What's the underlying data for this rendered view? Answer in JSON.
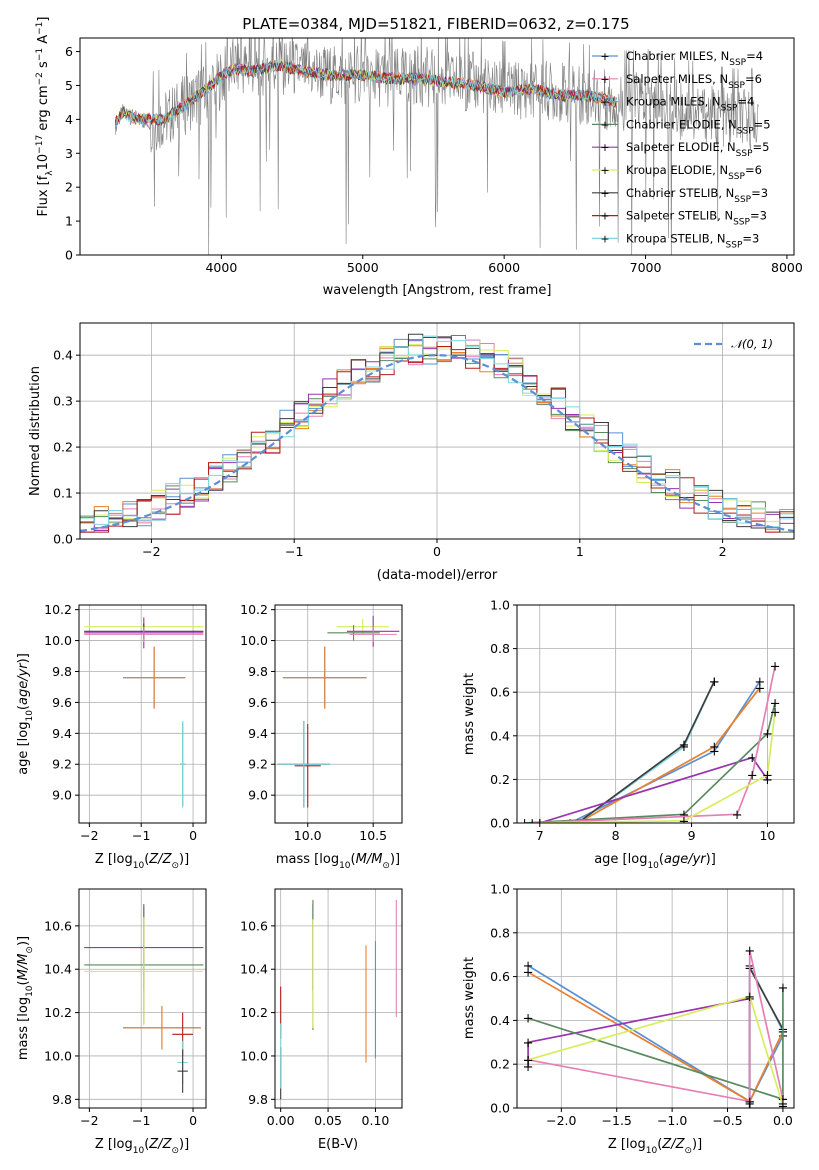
{
  "title": "PLATE=0384, MJD=51821, FIBERID=0632, z=0.175",
  "colors": {
    "data": "#808080",
    "chabrier_miles": "#5b8fd6",
    "salpeter_miles": "#e67fb5",
    "kroupa_miles": "#e8802f",
    "chabrier_elodie": "#5a8a5f",
    "salpeter_elodie": "#9a33b0",
    "kroupa_elodie": "#d6ee5e",
    "chabrier_stelib": "#3d3d3d",
    "salpeter_stelib": "#b51b1b",
    "kroupa_stelib": "#7fd6e0",
    "gaussian": "#5b8fd6",
    "grid": "#b0b0b0"
  },
  "spectrum_panel": {
    "xlabel": "wavelength [Angstrom, rest frame]",
    "ylabel_parts": [
      "Flux [f",
      "λ",
      "10",
      "−17",
      " erg cm",
      "−2",
      " s",
      "−1",
      " A",
      "−1",
      "]"
    ],
    "xticks": [
      "4000",
      "5000",
      "6000",
      "7000",
      "8000"
    ],
    "yticks": [
      "0",
      "1",
      "2",
      "3",
      "4",
      "5",
      "6"
    ],
    "legend": [
      {
        "label": "Chabrier MILES, N",
        "sub": "SSP",
        "n": "=4",
        "color_key": "chabrier_miles"
      },
      {
        "label": "Salpeter MILES, N",
        "sub": "SSP",
        "n": "=6",
        "color_key": "salpeter_miles"
      },
      {
        "label": "Kroupa MILES, N",
        "sub": "SSP",
        "n": "=4",
        "color_key": "kroupa_miles"
      },
      {
        "label": "Chabrier ELODIE, N",
        "sub": "SSP",
        "n": "=5",
        "color_key": "chabrier_elodie"
      },
      {
        "label": "Salpeter ELODIE, N",
        "sub": "SSP",
        "n": "=5",
        "color_key": "salpeter_elodie"
      },
      {
        "label": "Kroupa ELODIE, N",
        "sub": "SSP",
        "n": "=6",
        "color_key": "kroupa_elodie"
      },
      {
        "label": "Chabrier STELIB, N",
        "sub": "SSP",
        "n": "=3",
        "color_key": "chabrier_stelib"
      },
      {
        "label": "Salpeter STELIB, N",
        "sub": "SSP",
        "n": "=3",
        "color_key": "salpeter_stelib"
      },
      {
        "label": "Kroupa STELIB, N",
        "sub": "SSP",
        "n": "=3",
        "color_key": "kroupa_stelib"
      }
    ]
  },
  "residual_panel": {
    "xlabel": "(data-model)/error",
    "ylabel": "Normed distribution",
    "xticks": [
      "−2",
      "−1",
      "0",
      "1",
      "2"
    ],
    "yticks": [
      "0.0",
      "0.1",
      "0.2",
      "0.3",
      "0.4"
    ],
    "legend_label": "𝒩(0, 1)"
  },
  "small_panels": {
    "age_z": {
      "xlabel": "Z [log10(Z/Z⊙)]",
      "ylabel": "age  [log10(age/yr)]",
      "xticks": [
        "−2",
        "−1",
        "0"
      ],
      "yticks": [
        "9.0",
        "9.2",
        "9.4",
        "9.6",
        "9.8",
        "10.0",
        "10.2"
      ]
    },
    "age_mass": {
      "xlabel": "mass [log10(M/M⊙)]",
      "xticks": [
        "10.0",
        "10.5"
      ],
      "yticks": [
        "9.0",
        "9.2",
        "9.4",
        "9.6",
        "9.8",
        "10.0",
        "10.2"
      ]
    },
    "weight_age": {
      "xlabel": "age  [log10(age/yr)]",
      "ylabel": "mass weight",
      "xticks": [
        "7",
        "8",
        "9",
        "10"
      ],
      "yticks": [
        "0.0",
        "0.2",
        "0.4",
        "0.6",
        "0.8",
        "1.0"
      ]
    },
    "mass_z": {
      "xlabel": "Z [log10(Z/Z⊙)]",
      "ylabel": "mass [log10(M/M⊙)]",
      "xticks": [
        "−2",
        "−1",
        "0"
      ],
      "yticks": [
        "9.8",
        "10.0",
        "10.2",
        "10.4",
        "10.6"
      ]
    },
    "mass_ebv": {
      "xlabel": "E(B-V)",
      "xticks": [
        "0.00",
        "0.05",
        "0.10"
      ],
      "yticks": [
        "9.8",
        "10.0",
        "10.2",
        "10.4",
        "10.6"
      ]
    },
    "weight_z": {
      "xlabel": "Z [log10(Z/Z⊙)]",
      "ylabel": "mass weight",
      "xticks": [
        "−2.0",
        "−1.5",
        "−1.0",
        "−0.5",
        "0.0"
      ],
      "yticks": [
        "0.0",
        "0.2",
        "0.4",
        "0.6",
        "0.8",
        "1.0"
      ]
    }
  },
  "chart_data": [
    {
      "type": "line",
      "title": "PLATE=0384, MJD=51821, FIBERID=0632, z=0.175",
      "xlabel": "wavelength [Angstrom, rest frame]",
      "ylabel": "Flux [fλ10−17 erg cm−2 s−1 A−1]",
      "xlim": [
        3000,
        8050
      ],
      "ylim": [
        0,
        6.4
      ],
      "grid": false,
      "legend": "top-right",
      "series": [
        {
          "name": "data",
          "color_key": "data",
          "x": [
            3250,
            3300,
            3400,
            3500,
            3600,
            3700,
            3800,
            3900,
            4000,
            4100,
            4200,
            4400,
            4600,
            4800,
            5000,
            5200,
            5400,
            5600,
            5800,
            6000,
            6200,
            6400,
            6600,
            6800,
            7000,
            7200,
            7400,
            7600,
            7800
          ],
          "y": [
            3.8,
            4.2,
            4.0,
            3.9,
            4.0,
            4.3,
            4.6,
            4.8,
            5.2,
            5.6,
            5.5,
            5.6,
            5.4,
            5.3,
            5.3,
            5.2,
            5.3,
            5.1,
            5.1,
            4.8,
            4.9,
            4.8,
            4.7,
            4.5,
            4.6,
            4.3,
            4.2,
            4.0,
            4.0
          ]
        },
        {
          "name": "model (all SSP fits)",
          "color_key": "kroupa_stelib",
          "x": [
            3250,
            3300,
            3400,
            3500,
            3600,
            3700,
            3800,
            3900,
            4000,
            4100,
            4200,
            4400,
            4600,
            4800,
            5000,
            5200,
            5400,
            5600,
            5800,
            6000,
            6200,
            6400,
            6600,
            6800
          ],
          "y": [
            3.9,
            4.2,
            4.0,
            4.0,
            4.0,
            4.3,
            4.6,
            4.9,
            5.3,
            5.5,
            5.4,
            5.6,
            5.4,
            5.3,
            5.3,
            5.2,
            5.2,
            5.1,
            5.0,
            4.8,
            4.9,
            4.7,
            4.7,
            4.5
          ]
        }
      ]
    },
    {
      "type": "bar",
      "title": "",
      "xlabel": "(data-model)/error",
      "ylabel": "Normed distribution",
      "xlim": [
        -2.5,
        2.5
      ],
      "ylim": [
        0,
        0.47
      ],
      "grid": true,
      "legend": "top-right",
      "bins": [
        -2.5,
        -2.3,
        -2.1,
        -1.9,
        -1.7,
        -1.5,
        -1.3,
        -1.1,
        -0.9,
        -0.7,
        -0.5,
        -0.3,
        -0.1,
        0.1,
        0.3,
        0.5,
        0.7,
        0.9,
        1.1,
        1.3,
        1.5,
        1.7,
        1.9,
        2.1,
        2.3,
        2.5
      ],
      "histogram_values": [
        0.04,
        0.05,
        0.07,
        0.09,
        0.12,
        0.16,
        0.2,
        0.23,
        0.27,
        0.31,
        0.34,
        0.36,
        0.38,
        0.36,
        0.33,
        0.3,
        0.28,
        0.24,
        0.21,
        0.16,
        0.12,
        0.09,
        0.07,
        0.05,
        0.04
      ],
      "gaussian": {
        "name": "𝒩(0, 1)",
        "mean": 0,
        "sigma": 1,
        "peak": 0.4
      }
    },
    {
      "type": "scatter",
      "xlabel": "Z [log10(Z/Z⊙)]",
      "ylabel": "age  [log10(age/yr)]",
      "xlim": [
        -2.2,
        0.25
      ],
      "ylim": [
        8.82,
        10.23
      ],
      "points": [
        {
          "color_key": "kroupa_elodie",
          "x": -0.95,
          "xerr": 1.15,
          "y": 10.09,
          "yerr": 0.05
        },
        {
          "color_key": "salpeter_elodie",
          "x": -0.95,
          "xerr": 1.15,
          "y": 10.05,
          "yerr": 0.1
        },
        {
          "color_key": "chabrier_stelib",
          "x": -0.95,
          "xerr": 1.15,
          "y": 10.06,
          "yerr": 0.05
        },
        {
          "color_key": "salpeter_miles",
          "x": -0.95,
          "xerr": 1.15,
          "y": 10.04,
          "yerr": 0.05
        },
        {
          "color_key": "chabrier_miles",
          "x": -0.75,
          "xerr": 0.6,
          "y": 9.76,
          "yerr": 0.2
        },
        {
          "color_key": "kroupa_miles",
          "x": -0.75,
          "xerr": 0.6,
          "y": 9.76,
          "yerr": 0.2
        },
        {
          "color_key": "chabrier_elodie",
          "x": -0.2,
          "xerr": 0.05,
          "y": 9.2,
          "yerr": 0.27
        },
        {
          "color_key": "kroupa_stelib",
          "x": -0.2,
          "xerr": 0.05,
          "y": 9.2,
          "yerr": 0.28
        }
      ]
    },
    {
      "type": "scatter",
      "xlabel": "mass [log10(M/M⊙)]",
      "ylabel": "",
      "xlim": [
        9.75,
        10.72
      ],
      "ylim": [
        8.82,
        10.23
      ],
      "points": [
        {
          "color_key": "kroupa_elodie",
          "x": 10.42,
          "xerr": 0.2,
          "y": 10.09,
          "yerr": 0.05
        },
        {
          "color_key": "salpeter_elodie",
          "x": 10.5,
          "xerr": 0.2,
          "y": 10.06,
          "yerr": 0.1
        },
        {
          "color_key": "chabrier_elodie",
          "x": 10.35,
          "xerr": 0.2,
          "y": 10.05,
          "yerr": 0.05
        },
        {
          "color_key": "salpeter_miles",
          "x": 10.5,
          "xerr": 0.18,
          "y": 10.04,
          "yerr": 0.05
        },
        {
          "color_key": "chabrier_miles",
          "x": 10.13,
          "xerr": 0.32,
          "y": 9.76,
          "yerr": 0.2
        },
        {
          "color_key": "kroupa_miles",
          "x": 10.13,
          "xerr": 0.32,
          "y": 9.76,
          "yerr": 0.2
        },
        {
          "color_key": "salpeter_stelib",
          "x": 10.0,
          "xerr": 0.1,
          "y": 9.19,
          "yerr": 0.27
        },
        {
          "color_key": "chabrier_stelib",
          "x": 9.97,
          "xerr": 0.2,
          "y": 9.2,
          "yerr": 0.28
        },
        {
          "color_key": "kroupa_stelib",
          "x": 9.97,
          "xerr": 0.2,
          "y": 9.2,
          "yerr": 0.28
        }
      ]
    },
    {
      "type": "line",
      "xlabel": "age  [log10(age/yr)]",
      "ylabel": "mass weight",
      "xlim": [
        6.7,
        10.35
      ],
      "ylim": [
        0,
        1
      ],
      "grid": true,
      "series": [
        {
          "color_key": "chabrier_miles",
          "x": [
            7.4,
            9.3,
            9.9
          ],
          "y": [
            0.0,
            0.33,
            0.65
          ]
        },
        {
          "color_key": "kroupa_miles",
          "x": [
            7.5,
            9.3,
            9.9
          ],
          "y": [
            0.0,
            0.35,
            0.62
          ]
        },
        {
          "color_key": "kroupa_stelib",
          "x": [
            7.5,
            8.9,
            9.3
          ],
          "y": [
            0.0,
            0.35,
            0.65
          ]
        },
        {
          "color_key": "chabrier_stelib",
          "x": [
            7.5,
            8.9,
            9.3
          ],
          "y": [
            0.0,
            0.36,
            0.65
          ]
        },
        {
          "color_key": "salpeter_elodie",
          "x": [
            7.0,
            9.8,
            10.0
          ],
          "y": [
            0.0,
            0.3,
            0.2
          ]
        },
        {
          "color_key": "chabrier_elodie",
          "x": [
            6.8,
            8.9,
            10.0,
            10.1
          ],
          "y": [
            0.0,
            0.04,
            0.41,
            0.55
          ]
        },
        {
          "color_key": "salpeter_miles",
          "x": [
            6.9,
            9.6,
            9.8,
            10.1
          ],
          "y": [
            0.0,
            0.04,
            0.22,
            0.72
          ]
        },
        {
          "color_key": "kroupa_elodie",
          "x": [
            7.0,
            8.9,
            10.0,
            10.1
          ],
          "y": [
            0.0,
            0.01,
            0.22,
            0.51
          ]
        }
      ]
    },
    {
      "type": "scatter",
      "xlabel": "Z [log10(Z/Z⊙)]",
      "ylabel": "mass [log10(M/M⊙)]",
      "xlim": [
        -2.2,
        0.25
      ],
      "ylim": [
        9.76,
        10.77
      ],
      "points": [
        {
          "color_key": "salpeter_elodie",
          "x": -0.95,
          "xerr": 1.15,
          "y": 10.5,
          "yerr": 0.2
        },
        {
          "color_key": "chabrier_elodie",
          "x": -0.95,
          "xerr": 1.15,
          "y": 10.42,
          "yerr": 0.27
        },
        {
          "color_key": "kroupa_elodie",
          "x": -0.95,
          "xerr": 1.15,
          "y": 10.39,
          "yerr": 0.25
        },
        {
          "color_key": "chabrier_miles",
          "x": -0.6,
          "xerr": 0.75,
          "y": 10.13,
          "yerr": 0.1
        },
        {
          "color_key": "kroupa_miles",
          "x": -0.6,
          "xerr": 0.75,
          "y": 10.13,
          "yerr": 0.1
        },
        {
          "color_key": "salpeter_stelib",
          "x": -0.2,
          "xerr": 0.2,
          "y": 10.1,
          "yerr": 0.1
        },
        {
          "color_key": "kroupa_stelib",
          "x": -0.2,
          "xerr": 0.1,
          "y": 9.97,
          "yerr": 0.1
        },
        {
          "color_key": "chabrier_stelib",
          "x": -0.2,
          "xerr": 0.1,
          "y": 9.93,
          "yerr": 0.1
        }
      ]
    },
    {
      "type": "scatter",
      "xlabel": "E(B-V)",
      "ylabel": "",
      "xlim": [
        -0.006,
        0.128
      ],
      "ylim": [
        9.76,
        10.77
      ],
      "points": [
        {
          "color_key": "salpeter_stelib",
          "x": 0.0,
          "y": 10.2,
          "yerr": 0.12
        },
        {
          "color_key": "chabrier_stelib",
          "x": 0.0,
          "y": 9.92,
          "yerr": 0.12
        },
        {
          "color_key": "kroupa_stelib",
          "x": 0.0,
          "y": 10.0,
          "yerr": 0.15
        },
        {
          "color_key": "salpeter_elodie",
          "x": 0.034,
          "y": 10.5,
          "yerr": 0.2
        },
        {
          "color_key": "chabrier_elodie",
          "x": 0.034,
          "y": 10.42,
          "yerr": 0.3
        },
        {
          "color_key": "kroupa_elodie",
          "x": 0.034,
          "y": 10.38,
          "yerr": 0.25
        },
        {
          "color_key": "kroupa_miles",
          "x": 0.09,
          "y": 10.24,
          "yerr": 0.27
        },
        {
          "color_key": "chabrier_miles",
          "x": 0.1,
          "y": 10.26,
          "yerr": 0.27
        },
        {
          "color_key": "salpeter_miles",
          "x": 0.122,
          "y": 10.45,
          "yerr": 0.27
        }
      ]
    },
    {
      "type": "line",
      "xlabel": "Z [log10(Z/Z⊙)]",
      "ylabel": "mass weight",
      "xlim": [
        -2.4,
        0.1
      ],
      "ylim": [
        0,
        1
      ],
      "grid": true,
      "series": [
        {
          "color_key": "chabrier_miles",
          "x": [
            -2.3,
            -0.3,
            0.0
          ],
          "y": [
            0.65,
            0.03,
            0.33
          ]
        },
        {
          "color_key": "kroupa_miles",
          "x": [
            -2.3,
            -0.3,
            0.0
          ],
          "y": [
            0.62,
            0.03,
            0.35
          ]
        },
        {
          "color_key": "kroupa_stelib",
          "x": [
            -0.3,
            -0.3,
            0.0
          ],
          "y": [
            0.0,
            0.65,
            0.35
          ]
        },
        {
          "color_key": "chabrier_stelib",
          "x": [
            -0.3,
            -0.3,
            0.0
          ],
          "y": [
            0.0,
            0.64,
            0.36
          ]
        },
        {
          "color_key": "salpeter_elodie",
          "x": [
            -2.3,
            -2.3,
            -0.3,
            -0.3
          ],
          "y": [
            0.19,
            0.3,
            0.5,
            0.02
          ]
        },
        {
          "color_key": "chabrier_elodie",
          "x": [
            -2.3,
            0.0,
            0.0
          ],
          "y": [
            0.41,
            0.04,
            0.55
          ]
        },
        {
          "color_key": "salpeter_miles",
          "x": [
            -2.3,
            -0.3,
            -0.3,
            0.0
          ],
          "y": [
            0.22,
            0.03,
            0.72,
            0.04
          ]
        },
        {
          "color_key": "kroupa_elodie",
          "x": [
            -2.3,
            -0.3,
            0.0,
            0.0
          ],
          "y": [
            0.22,
            0.51,
            0.01,
            0.02
          ]
        }
      ]
    }
  ]
}
